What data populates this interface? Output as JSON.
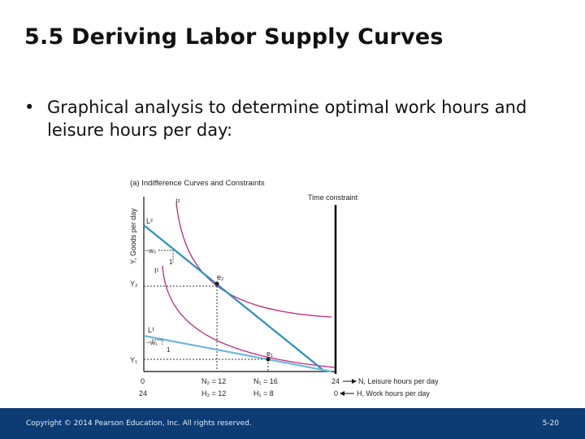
{
  "slide": {
    "title": "5.5 Deriving Labor Supply Curves",
    "bullet_symbol": "•",
    "bullet_text": "Graphical analysis to determine optimal work hours and leisure hours per day:"
  },
  "figure": {
    "panel_title": "(a) Indifference Curves and Constraints",
    "y_axis_label": "Y, Goods per day",
    "time_constraint_label": "Time constraint",
    "labels": {
      "L2": "L²",
      "I2": "I²",
      "neg_w2": "−w₂",
      "one_upper": "1",
      "I1": "I¹",
      "Y2": "Y₂",
      "e2": "e₂",
      "L1": "L¹",
      "neg_w1": "−w₁",
      "one_lower": "1",
      "Y1": "Y₁",
      "e1": "e₁",
      "origin_zero": "0",
      "origin_24": "24",
      "N2": "N₂ = 12",
      "H2": "H₂ = 12",
      "N1": "N₁ = 16",
      "H1": "H₁ = 8",
      "right_24": "24",
      "right_0": "0",
      "leisure_axis": "N, Leisure hours per day",
      "work_axis": "H, Work hours per day"
    },
    "colors": {
      "indifference_curves": "#c2277a",
      "budget_upper": "#2a8fc4",
      "budget_lower": "#6cb8de",
      "axes": "#111111"
    }
  },
  "footer": {
    "copyright": "Copyright © 2014 Pearson Education, Inc. All rights reserved.",
    "page": "5-20"
  }
}
